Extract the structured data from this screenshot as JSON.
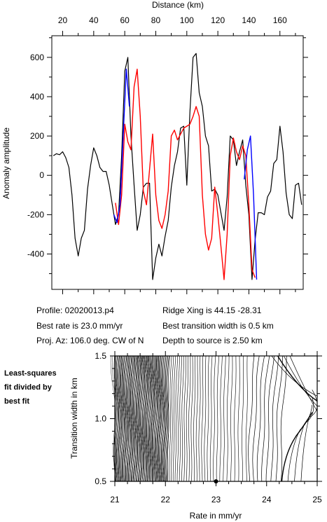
{
  "info": {
    "profile": "Profile: 02020013.p4",
    "best_rate": "Best rate is 23.0 mm/yr",
    "proj_az": "Proj. Az: 106.0 deg. CW of N",
    "ridge_xing": "Ridge Xing is 44.15 -28.31",
    "best_transition": "Best transition width is 0.5 km",
    "depth": "Depth to source is   2.50 km"
  },
  "sidebar_note": [
    "Least-squares",
    "fit divided by",
    "best fit"
  ],
  "chart_data": [
    {
      "type": "line",
      "title": "",
      "xlabel": "Distance (km)",
      "ylabel": "Anomaly amplitude",
      "xlim": [
        13,
        175
      ],
      "ylim": [
        -580,
        710
      ],
      "xticks": [
        20,
        40,
        60,
        80,
        100,
        120,
        140,
        160
      ],
      "yticks": [
        -400,
        -200,
        0,
        200,
        400,
        600
      ],
      "grid": false,
      "legend": "none",
      "series": [
        {
          "name": "",
          "color": "#000000",
          "x": [
            14,
            16,
            18,
            20,
            22,
            24,
            26,
            28,
            30,
            32,
            34,
            36,
            38,
            40,
            42,
            44,
            46,
            48,
            50,
            52,
            54,
            56,
            58,
            60,
            62,
            64,
            66,
            68,
            70,
            72,
            74,
            76,
            78,
            80,
            82,
            84,
            86,
            88,
            90,
            92,
            94,
            96,
            98,
            100,
            102,
            104,
            106,
            108,
            110,
            112,
            114,
            116,
            118,
            120,
            122,
            124,
            126,
            128,
            130,
            132,
            134,
            136,
            138,
            140,
            142,
            144,
            146,
            148,
            150,
            152,
            154,
            156,
            158,
            160,
            162,
            164,
            166,
            168,
            170,
            172,
            174
          ],
          "y": [
            100,
            110,
            105,
            120,
            90,
            40,
            -100,
            -320,
            -410,
            -320,
            -280,
            -70,
            50,
            140,
            100,
            40,
            20,
            20,
            -50,
            -150,
            -250,
            -200,
            100,
            530,
            600,
            200,
            -50,
            -280,
            -200,
            -60,
            -40,
            -40,
            -530,
            -420,
            -350,
            -410,
            -310,
            -230,
            -60,
            50,
            120,
            240,
            250,
            -50,
            320,
            600,
            620,
            420,
            350,
            200,
            150,
            -80,
            -70,
            -100,
            -190,
            -280,
            -110,
            200,
            180,
            50,
            120,
            180,
            -50,
            -200,
            -530,
            -330,
            -190,
            -190,
            -200,
            -110,
            -80,
            60,
            80,
            250,
            120,
            -90,
            -200,
            -220,
            -50,
            -40,
            -150
          ]
        },
        {
          "name": "",
          "color": "#ff0000",
          "x": [
            54,
            56,
            58,
            60,
            62,
            64,
            66,
            68,
            70,
            72,
            74,
            76,
            78,
            80,
            82,
            84,
            86,
            88,
            90,
            92,
            94,
            96,
            98,
            100,
            102,
            104,
            106,
            108,
            110,
            112,
            114,
            116,
            118,
            120,
            122,
            124,
            126,
            128,
            130,
            132,
            134,
            136,
            138,
            140,
            142,
            144
          ],
          "y": [
            -140,
            -250,
            -100,
            260,
            170,
            130,
            450,
            540,
            300,
            -80,
            -150,
            30,
            210,
            -100,
            -230,
            -270,
            -200,
            -80,
            200,
            230,
            180,
            210,
            240,
            250,
            260,
            300,
            350,
            300,
            -100,
            -300,
            -380,
            -320,
            -60,
            -200,
            -360,
            -530,
            -300,
            100,
            190,
            120,
            80,
            150,
            100,
            -150,
            -480,
            -520
          ]
        },
        {
          "name": "",
          "color": "#0000ff",
          "x": [
            53,
            55,
            57,
            59,
            61,
            63
          ],
          "y": [
            -200,
            -240,
            -150,
            200,
            540,
            350
          ]
        },
        {
          "name": "",
          "color": "#0000ff",
          "x": [
            137,
            139,
            141,
            143,
            145
          ],
          "y": [
            -20,
            130,
            200,
            -100,
            -530
          ]
        }
      ]
    },
    {
      "type": "contour",
      "title": "",
      "xlabel": "Rate in mm/yr",
      "ylabel": "Transition width in km",
      "xlim": [
        21,
        25
      ],
      "ylim": [
        0.5,
        1.5
      ],
      "xticks": [
        21,
        22,
        23,
        24,
        25
      ],
      "yticks": [
        0.5,
        1.0,
        1.5
      ],
      "grid": false,
      "legend": "none",
      "best_fit": {
        "x": 23.0,
        "y": 0.5
      }
    }
  ]
}
